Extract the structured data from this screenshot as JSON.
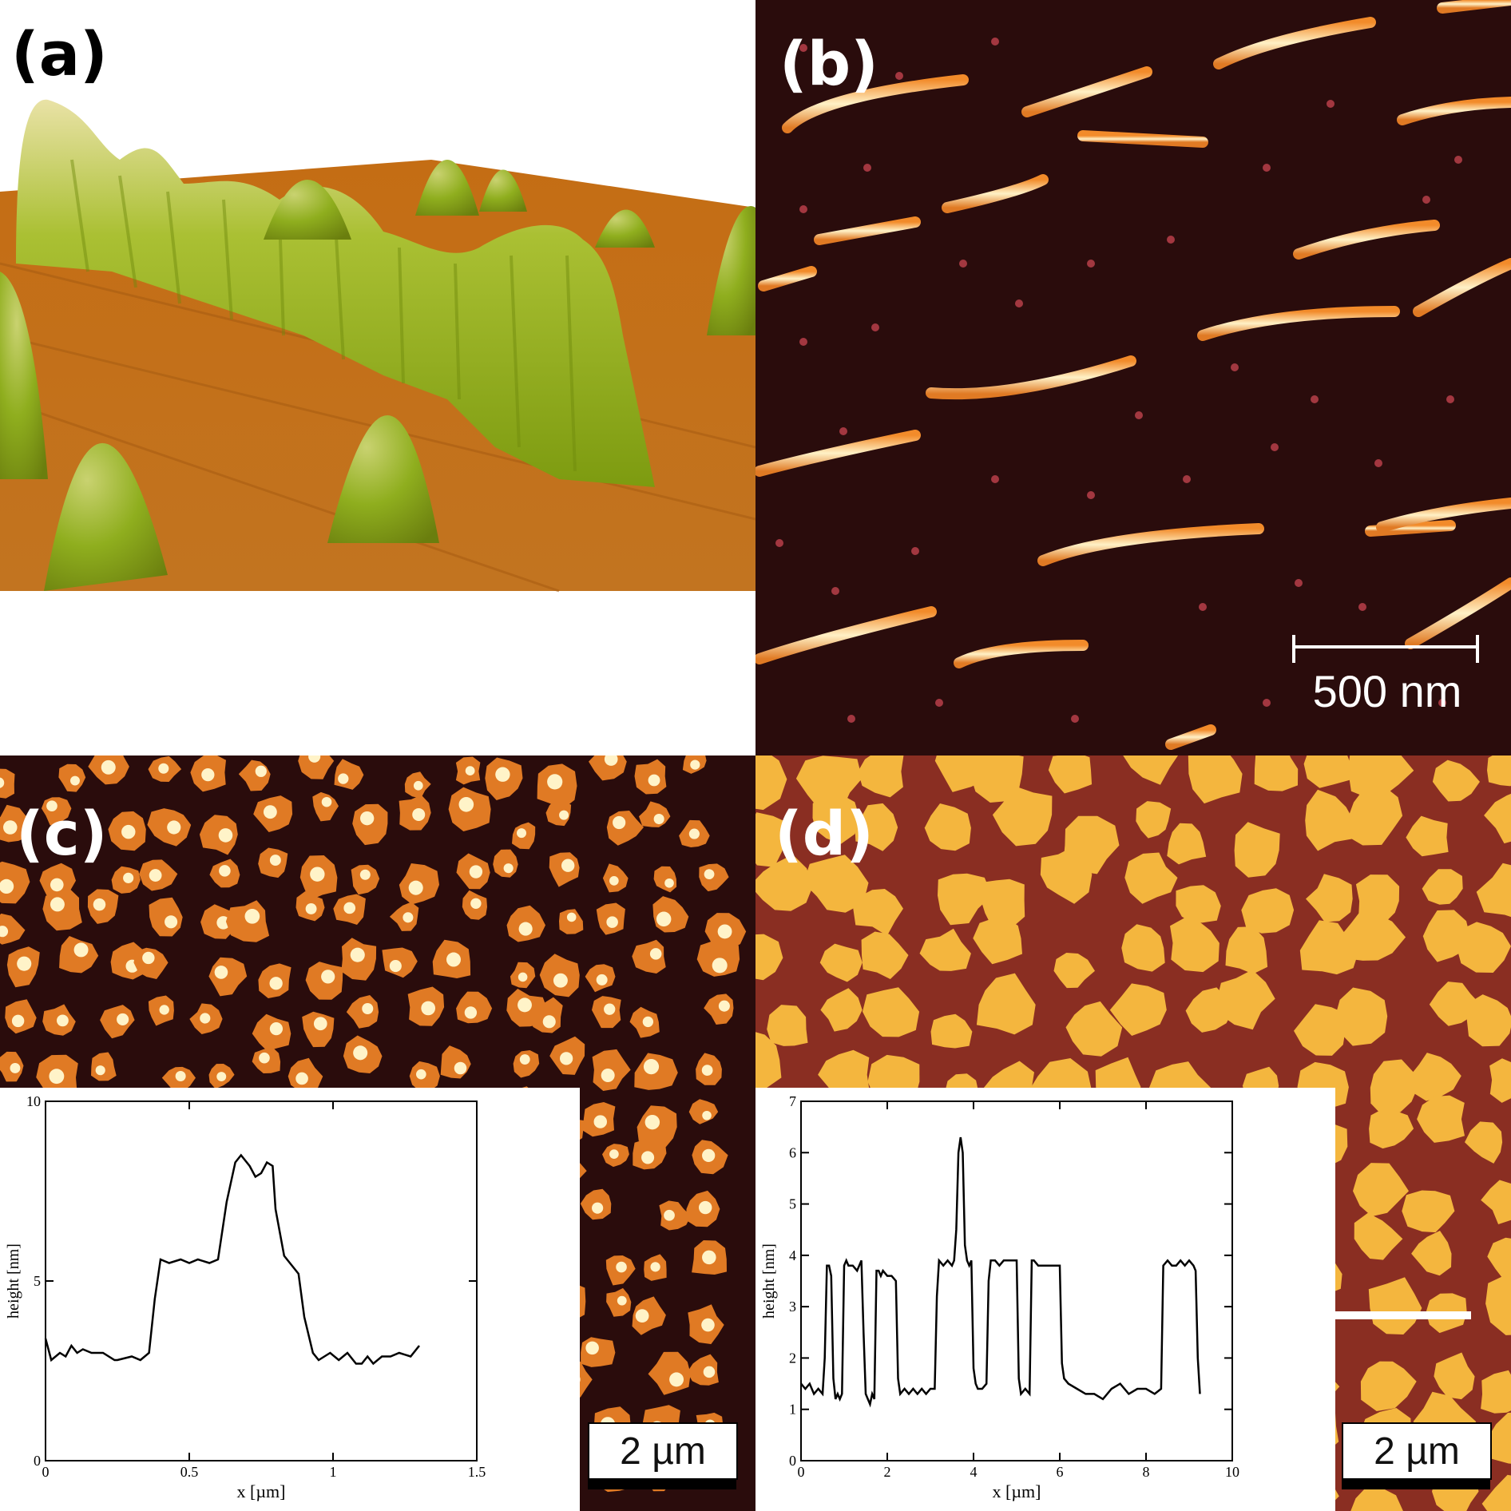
{
  "figure": {
    "panels": [
      {
        "label": "(a)",
        "image": "3D AFM topography rendering"
      },
      {
        "label": "(b)",
        "image": "AFM height image with elongated filaments",
        "scalebar": "500 nm"
      },
      {
        "label": "(c)",
        "image": "AFM height image with islands",
        "scalebar": "2 µm"
      },
      {
        "label": "(d)",
        "image": "AFM height image with islands",
        "scalebar": "2 µm"
      }
    ]
  },
  "colors": {
    "afm_dark": "#2a0c0c",
    "afm_orange": "#e07a24",
    "afm_yellow": "#f4b63e",
    "afm_bright": "#fff3c8",
    "terrain_brown": "#b96a1b",
    "terrain_green": "#8fae1e",
    "profile_line": "#000000",
    "label_white": "#ffffff",
    "label_black": "#000000"
  },
  "chart_data": [
    {
      "panel": "(c)",
      "type": "line",
      "xlabel": "x [µm]",
      "ylabel": "height [nm]",
      "xlim": [
        0,
        1.5
      ],
      "ylim": [
        0,
        10
      ],
      "xticks": [
        0,
        0.5,
        1,
        1.5
      ],
      "xtick_labels": [
        "0",
        "0.5",
        "1",
        "1.5"
      ],
      "yticks": [
        0,
        5,
        10
      ],
      "ytick_labels": [
        "0",
        "5",
        "10"
      ],
      "series": [
        {
          "x": [
            0,
            0.02,
            0.05,
            0.07,
            0.09,
            0.11,
            0.13,
            0.16,
            0.2,
            0.24,
            0.25,
            0.3,
            0.33,
            0.36,
            0.38,
            0.4,
            0.43,
            0.47,
            0.5,
            0.53,
            0.57,
            0.6,
            0.63,
            0.66,
            0.68,
            0.71,
            0.73,
            0.75,
            0.77,
            0.79,
            0.8,
            0.83,
            0.85,
            0.88,
            0.9,
            0.93,
            0.95,
            0.97,
            0.99,
            1.02,
            1.05,
            1.08,
            1.1,
            1.12,
            1.14,
            1.17,
            1.2,
            1.23,
            1.27,
            1.3
          ],
          "y": [
            3.4,
            2.8,
            3.0,
            2.9,
            3.2,
            3.0,
            3.1,
            3.0,
            3.0,
            2.8,
            2.8,
            2.9,
            2.8,
            3.0,
            4.5,
            5.6,
            5.5,
            5.6,
            5.5,
            5.6,
            5.5,
            5.6,
            7.2,
            8.3,
            8.5,
            8.2,
            7.9,
            8.0,
            8.3,
            8.2,
            7.0,
            5.7,
            5.5,
            5.2,
            4.0,
            3.0,
            2.8,
            2.9,
            3.0,
            2.8,
            3.0,
            2.7,
            2.7,
            2.9,
            2.7,
            2.9,
            2.9,
            3.0,
            2.9,
            3.2
          ]
        }
      ]
    },
    {
      "panel": "(d)",
      "type": "line",
      "xlabel": "x [µm]",
      "ylabel": "height [nm]",
      "xlim": [
        0,
        10
      ],
      "ylim": [
        0,
        7
      ],
      "xticks": [
        0,
        2,
        4,
        6,
        8,
        10
      ],
      "xtick_labels": [
        "0",
        "2",
        "4",
        "6",
        "8",
        "10"
      ],
      "yticks": [
        0,
        1,
        2,
        3,
        4,
        5,
        6,
        7
      ],
      "ytick_labels": [
        "0",
        "1",
        "2",
        "3",
        "4",
        "5",
        "6",
        "7"
      ],
      "series": [
        {
          "x": [
            0,
            0.1,
            0.2,
            0.3,
            0.4,
            0.5,
            0.55,
            0.6,
            0.65,
            0.7,
            0.75,
            0.8,
            0.85,
            0.9,
            0.95,
            1.0,
            1.05,
            1.1,
            1.2,
            1.3,
            1.4,
            1.45,
            1.5,
            1.55,
            1.6,
            1.65,
            1.7,
            1.75,
            1.8,
            1.85,
            1.9,
            2.0,
            2.1,
            2.2,
            2.25,
            2.3,
            2.4,
            2.5,
            2.6,
            2.7,
            2.8,
            2.9,
            3.0,
            3.1,
            3.15,
            3.2,
            3.3,
            3.4,
            3.5,
            3.55,
            3.6,
            3.65,
            3.7,
            3.75,
            3.8,
            3.85,
            3.9,
            3.95,
            4.0,
            4.05,
            4.1,
            4.2,
            4.3,
            4.35,
            4.4,
            4.5,
            4.6,
            4.7,
            4.8,
            4.9,
            5.0,
            5.05,
            5.1,
            5.2,
            5.3,
            5.35,
            5.4,
            5.5,
            5.6,
            5.7,
            5.8,
            5.9,
            6.0,
            6.05,
            6.1,
            6.2,
            6.4,
            6.6,
            6.8,
            7.0,
            7.2,
            7.4,
            7.6,
            7.8,
            8.0,
            8.2,
            8.35,
            8.4,
            8.5,
            8.6,
            8.7,
            8.8,
            8.9,
            9.0,
            9.1,
            9.15,
            9.2,
            9.25
          ],
          "y": [
            1.5,
            1.4,
            1.5,
            1.3,
            1.4,
            1.3,
            2.0,
            3.8,
            3.8,
            3.6,
            1.6,
            1.2,
            1.3,
            1.2,
            1.3,
            3.8,
            3.9,
            3.8,
            3.8,
            3.7,
            3.9,
            2.5,
            1.3,
            1.2,
            1.1,
            1.3,
            1.2,
            3.7,
            3.7,
            3.6,
            3.7,
            3.6,
            3.6,
            3.5,
            1.6,
            1.3,
            1.4,
            1.3,
            1.4,
            1.3,
            1.4,
            1.3,
            1.4,
            1.4,
            3.2,
            3.9,
            3.8,
            3.9,
            3.8,
            3.9,
            4.5,
            6.0,
            6.3,
            6.0,
            4.2,
            3.9,
            3.8,
            3.9,
            1.8,
            1.5,
            1.4,
            1.4,
            1.5,
            3.5,
            3.9,
            3.9,
            3.8,
            3.9,
            3.9,
            3.9,
            3.9,
            1.6,
            1.3,
            1.4,
            1.3,
            3.9,
            3.9,
            3.8,
            3.8,
            3.8,
            3.8,
            3.8,
            3.8,
            1.9,
            1.6,
            1.5,
            1.4,
            1.3,
            1.3,
            1.2,
            1.4,
            1.5,
            1.3,
            1.4,
            1.4,
            1.3,
            1.4,
            3.8,
            3.9,
            3.8,
            3.8,
            3.9,
            3.8,
            3.9,
            3.8,
            3.7,
            2.0,
            1.3
          ]
        }
      ]
    }
  ]
}
